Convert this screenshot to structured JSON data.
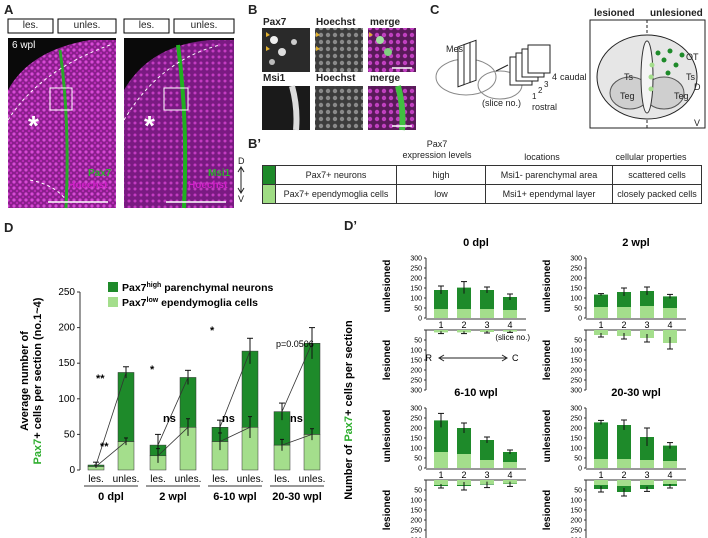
{
  "panels": {
    "A": "A",
    "B": "B",
    "B2": "B’",
    "C": "C",
    "D": "D",
    "D2": "D’"
  },
  "panelA": {
    "left": {
      "tags": [
        "les.",
        "unles."
      ],
      "time": "6 wpl",
      "marker": "Pax7",
      "stain": "Hoechst",
      "asterisk": "*"
    },
    "right": {
      "tags": [
        "les.",
        "unles."
      ],
      "marker": "Msi1",
      "stain": "Hoechst",
      "asterisk": "*"
    },
    "axis": {
      "d": "D",
      "v": "V"
    }
  },
  "panelB": {
    "row1": [
      "Pax7",
      "Hoechst",
      "merge"
    ],
    "row2": [
      "Msi1",
      "Hoechst",
      "merge"
    ]
  },
  "panelC": {
    "mes": "Mes",
    "caudal": "caudal",
    "rostral": "rostral",
    "sliceno": "(slice no.)",
    "nums": [
      "1",
      "2",
      "3",
      "4"
    ],
    "lesioned": "lesioned",
    "unlesioned": "unlesioned",
    "labels": {
      "ot": "OT",
      "ts_l": "Ts",
      "ts_r": "Ts",
      "teg_l": "Teg",
      "teg_r": "Teg"
    },
    "d": "D",
    "v": "V"
  },
  "panelB2": {
    "headers": [
      "",
      "Pax7\nexpression levels",
      "locations",
      "cellular properties"
    ],
    "rows": [
      {
        "name": "Pax7+ neurons",
        "level": "high",
        "loc": "Msi1- parenchymal area",
        "prop": "scattered cells",
        "color": "#1e8a2a"
      },
      {
        "name": "Pax7+ ependymoglia cells",
        "level": "low",
        "loc": "Msi1+ ependymal layer",
        "prop": "closely packed cells",
        "color": "#9fdc84"
      }
    ]
  },
  "colors": {
    "dark": "#1e8a2a",
    "light": "#a4de8c",
    "green_text": "#2eae2e",
    "magenta": "#d020c8"
  },
  "chart_data": [
    {
      "panel": "D",
      "type": "bar",
      "stacked": true,
      "ylabel": "Average number of Pax7+ cells per section (no.1~4)",
      "ylim": [
        0,
        250
      ],
      "yticks": [
        0,
        50,
        100,
        150,
        200,
        250
      ],
      "legend": [
        "Pax7high parenchymal neurons",
        "Pax7low ependymoglia cells"
      ],
      "groups": [
        "0 dpl",
        "2 wpl",
        "6-10 wpl",
        "20-30 wpl"
      ],
      "categories": [
        "les.",
        "unles.",
        "les.",
        "unles.",
        "les.",
        "unles.",
        "les.",
        "unles."
      ],
      "series": [
        {
          "name": "Pax7low ependymoglia cells",
          "values": [
            5,
            40,
            20,
            60,
            40,
            60,
            35,
            50
          ]
        },
        {
          "name": "Pax7high parenchymal neurons",
          "values": [
            2,
            97,
            15,
            70,
            20,
            107,
            47,
            128
          ]
        }
      ],
      "totals": [
        7,
        137,
        35,
        130,
        60,
        167,
        82,
        178
      ],
      "errors": [
        4,
        8,
        15,
        10,
        10,
        18,
        12,
        22
      ],
      "low_errors": [
        2,
        5,
        10,
        12,
        12,
        15,
        8,
        8
      ],
      "significance": [
        "**",
        "**",
        "*",
        "ns",
        "*",
        "ns",
        "p=0.0506",
        "ns"
      ]
    },
    {
      "panel": "D'",
      "type": "bar",
      "stacked": true,
      "ylabel": "Number of Pax7+ cells per section",
      "yticks_up": [
        0,
        50,
        100,
        150,
        200,
        250,
        300
      ],
      "yticks_down": [
        0,
        50,
        100,
        150,
        200,
        250,
        300
      ],
      "subplots": [
        {
          "title": "0 dpl",
          "x": [
            "1",
            "2",
            "3",
            "4"
          ],
          "unles_light": [
            45,
            45,
            45,
            40
          ],
          "unles_total": [
            140,
            152,
            140,
            105
          ],
          "unles_err": [
            20,
            30,
            15,
            15
          ],
          "les_light": [
            12,
            12,
            10,
            8
          ],
          "les_err": [
            6,
            6,
            5,
            4
          ],
          "upper_label": "unlesioned",
          "lower_label": "lesioned",
          "note": "(slice no.)",
          "arrow": {
            "r": "R",
            "c": "C"
          }
        },
        {
          "title": "2 wpl",
          "x": [
            "1",
            "2",
            "3",
            "4"
          ],
          "unles_light": [
            55,
            55,
            60,
            50
          ],
          "unles_total": [
            117,
            130,
            135,
            108
          ],
          "unles_err": [
            5,
            20,
            20,
            10
          ],
          "les_light": [
            25,
            30,
            40,
            65
          ],
          "les_err": [
            10,
            15,
            20,
            30
          ],
          "upper_label": "unlesioned",
          "lower_label": "lesioned"
        },
        {
          "title": "6-10 wpl",
          "x": [
            "1",
            "2",
            "3",
            "4"
          ],
          "unles_light": [
            80,
            70,
            40,
            30
          ],
          "unles_total": [
            238,
            200,
            140,
            80
          ],
          "unles_err": [
            35,
            25,
            15,
            10
          ],
          "les_light": [
            25,
            25,
            20,
            18
          ],
          "les_err": [
            10,
            20,
            15,
            12
          ],
          "les_dark": [
            5,
            5,
            3,
            2
          ],
          "upper_label": "unlesioned",
          "lower_label": "lesioned"
        },
        {
          "title": "20-30 wpl",
          "x": [
            "1",
            "2",
            "3",
            "4"
          ],
          "unles_light": [
            45,
            45,
            40,
            35
          ],
          "unles_total": [
            228,
            215,
            155,
            112
          ],
          "unles_err": [
            10,
            25,
            45,
            15
          ],
          "les_light": [
            25,
            30,
            25,
            20
          ],
          "les_dark": [
            20,
            30,
            20,
            10
          ],
          "les_err": [
            15,
            20,
            12,
            10
          ],
          "upper_label": "unlesioned",
          "lower_label": "lesioned"
        }
      ]
    }
  ]
}
